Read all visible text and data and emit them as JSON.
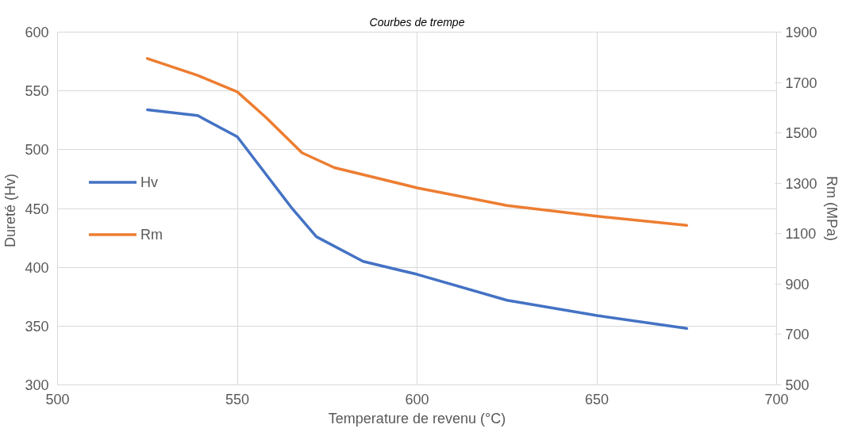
{
  "chart_data": {
    "type": "line",
    "title": "Courbes de trempe",
    "xlabel": "Temperature de revenu (°C)",
    "ylabel": "Dureté  (Hv)",
    "y2label": "Rm (MPa)",
    "xlim": [
      500,
      700
    ],
    "xticks": [
      500,
      550,
      600,
      650,
      700
    ],
    "ylim": [
      300,
      600
    ],
    "yticks": [
      300,
      350,
      400,
      450,
      500,
      550,
      600
    ],
    "y2lim": [
      500,
      1900
    ],
    "y2ticks": [
      500,
      700,
      900,
      1100,
      1300,
      1500,
      1700,
      1900
    ],
    "grid": true,
    "legend": "left",
    "marker": "none",
    "line_style": "solid",
    "series": [
      {
        "name": "Hv",
        "color": "#4472c4",
        "x": [
          525,
          539,
          550,
          558,
          565,
          572,
          585,
          600,
          625,
          650,
          675
        ],
        "values": [
          534,
          529,
          511,
          479,
          451,
          426,
          405,
          394,
          372,
          359,
          348
        ]
      },
      {
        "name": "Rm",
        "color": "#ed7d31",
        "axis": "y2",
        "x": [
          525,
          539,
          550,
          558,
          568,
          577,
          600,
          625,
          650,
          675
        ],
        "values": [
          1795,
          1728,
          1663,
          1561,
          1421,
          1362,
          1282,
          1212,
          1169,
          1133
        ]
      }
    ]
  }
}
